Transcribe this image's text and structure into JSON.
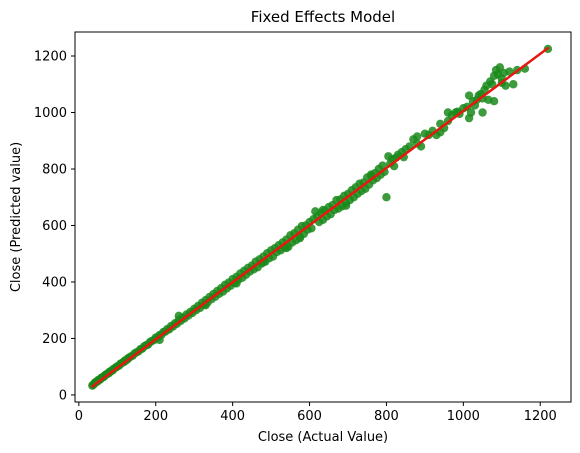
{
  "chart_data": {
    "type": "scatter",
    "title": "Fixed Effects Model",
    "xlabel": "Close (Actual Value)",
    "ylabel": "Close (Predicted value)",
    "xlim": [
      -10,
      1280
    ],
    "ylim": [
      -25,
      1285
    ],
    "xticks": [
      0,
      200,
      400,
      600,
      800,
      1000,
      1200
    ],
    "yticks": [
      0,
      200,
      400,
      600,
      800,
      1000,
      1200
    ],
    "grid": false,
    "legend": "none",
    "colors": {
      "points": "#1a8a1a",
      "fit_line": "#e8170f",
      "axes": "#000000",
      "background": "#ffffff"
    },
    "series": [
      {
        "kind": "scatter",
        "points": [
          [
            35,
            33
          ],
          [
            38,
            37
          ],
          [
            40,
            39
          ],
          [
            42,
            44
          ],
          [
            45,
            46
          ],
          [
            48,
            47
          ],
          [
            50,
            52
          ],
          [
            52,
            53
          ],
          [
            55,
            54
          ],
          [
            58,
            60
          ],
          [
            60,
            61
          ],
          [
            62,
            63
          ],
          [
            65,
            64
          ],
          [
            68,
            70
          ],
          [
            70,
            71
          ],
          [
            72,
            73
          ],
          [
            75,
            76
          ],
          [
            78,
            77
          ],
          [
            80,
            82
          ],
          [
            82,
            83
          ],
          [
            85,
            86
          ],
          [
            88,
            87
          ],
          [
            90,
            92
          ],
          [
            95,
            96
          ],
          [
            98,
            99
          ],
          [
            100,
            101
          ],
          [
            105,
            104
          ],
          [
            108,
            110
          ],
          [
            110,
            111
          ],
          [
            115,
            116
          ],
          [
            118,
            117
          ],
          [
            120,
            122
          ],
          [
            125,
            124
          ],
          [
            128,
            130
          ],
          [
            130,
            131
          ],
          [
            135,
            136
          ],
          [
            140,
            139
          ],
          [
            145,
            147
          ],
          [
            150,
            151
          ],
          [
            155,
            154
          ],
          [
            160,
            162
          ],
          [
            165,
            164
          ],
          [
            170,
            172
          ],
          [
            175,
            176
          ],
          [
            180,
            178
          ],
          [
            185,
            187
          ],
          [
            190,
            191
          ],
          [
            195,
            194
          ],
          [
            200,
            203
          ],
          [
            205,
            204
          ],
          [
            210,
            212
          ],
          [
            215,
            213
          ],
          [
            220,
            223
          ],
          [
            225,
            224
          ],
          [
            230,
            233
          ],
          [
            235,
            232
          ],
          [
            240,
            244
          ],
          [
            245,
            242
          ],
          [
            250,
            254
          ],
          [
            255,
            252
          ],
          [
            260,
            265
          ],
          [
            265,
            262
          ],
          [
            270,
            274
          ],
          [
            275,
            271
          ],
          [
            280,
            285
          ],
          [
            285,
            281
          ],
          [
            290,
            294
          ],
          [
            295,
            290
          ],
          [
            300,
            305
          ],
          [
            305,
            300
          ],
          [
            310,
            315
          ],
          [
            315,
            308
          ],
          [
            320,
            326
          ],
          [
            325,
            319
          ],
          [
            330,
            336
          ],
          [
            335,
            328
          ],
          [
            340,
            347
          ],
          [
            345,
            339
          ],
          [
            350,
            357
          ],
          [
            355,
            348
          ],
          [
            360,
            368
          ],
          [
            365,
            358
          ],
          [
            370,
            378
          ],
          [
            375,
            366
          ],
          [
            380,
            390
          ],
          [
            385,
            377
          ],
          [
            390,
            398
          ],
          [
            395,
            387
          ],
          [
            400,
            410
          ],
          [
            405,
            396
          ],
          [
            410,
            418
          ],
          [
            415,
            408
          ],
          [
            420,
            430
          ],
          [
            425,
            415
          ],
          [
            430,
            440
          ],
          [
            435,
            426
          ],
          [
            440,
            450
          ],
          [
            445,
            437
          ],
          [
            450,
            458
          ],
          [
            455,
            445
          ],
          [
            460,
            472
          ],
          [
            465,
            452
          ],
          [
            470,
            480
          ],
          [
            475,
            465
          ],
          [
            480,
            490
          ],
          [
            485,
            472
          ],
          [
            490,
            502
          ],
          [
            495,
            484
          ],
          [
            500,
            512
          ],
          [
            505,
            490
          ],
          [
            510,
            520
          ],
          [
            515,
            506
          ],
          [
            520,
            530
          ],
          [
            525,
            512
          ],
          [
            530,
            540
          ],
          [
            535,
            522
          ],
          [
            540,
            550
          ],
          [
            545,
            525
          ],
          [
            550,
            565
          ],
          [
            555,
            540
          ],
          [
            560,
            572
          ],
          [
            565,
            548
          ],
          [
            570,
            585
          ],
          [
            575,
            560
          ],
          [
            580,
            598
          ],
          [
            585,
            570
          ],
          [
            590,
            600
          ],
          [
            595,
            585
          ],
          [
            600,
            612
          ],
          [
            605,
            590
          ],
          [
            610,
            622
          ],
          [
            615,
            650
          ],
          [
            620,
            632
          ],
          [
            625,
            612
          ],
          [
            630,
            645
          ],
          [
            635,
            620
          ],
          [
            640,
            652
          ],
          [
            645,
            632
          ],
          [
            650,
            665
          ],
          [
            655,
            640
          ],
          [
            660,
            672
          ],
          [
            665,
            655
          ],
          [
            670,
            690
          ],
          [
            675,
            660
          ],
          [
            680,
            692
          ],
          [
            685,
            668
          ],
          [
            690,
            705
          ],
          [
            695,
            680
          ],
          [
            700,
            712
          ],
          [
            705,
            690
          ],
          [
            710,
            725
          ],
          [
            715,
            700
          ],
          [
            720,
            735
          ],
          [
            725,
            712
          ],
          [
            730,
            748
          ],
          [
            735,
            722
          ],
          [
            740,
            752
          ],
          [
            745,
            730
          ],
          [
            750,
            770
          ],
          [
            755,
            745
          ],
          [
            760,
            775
          ],
          [
            765,
            760
          ],
          [
            770,
            785
          ],
          [
            775,
            768
          ],
          [
            780,
            800
          ],
          [
            785,
            780
          ],
          [
            790,
            812
          ],
          [
            795,
            790
          ],
          [
            800,
            700
          ],
          [
            805,
            845
          ],
          [
            810,
            820
          ],
          [
            815,
            835
          ],
          [
            820,
            810
          ],
          [
            825,
            840
          ],
          [
            830,
            850
          ],
          [
            840,
            860
          ],
          [
            845,
            842
          ],
          [
            850,
            870
          ],
          [
            860,
            880
          ],
          [
            870,
            905
          ],
          [
            880,
            890
          ],
          [
            890,
            880
          ],
          [
            900,
            925
          ],
          [
            910,
            920
          ],
          [
            920,
            935
          ],
          [
            930,
            920
          ],
          [
            940,
            960
          ],
          [
            950,
            945
          ],
          [
            960,
            970
          ],
          [
            970,
            990
          ],
          [
            980,
            1000
          ],
          [
            985,
            1003
          ],
          [
            990,
            995
          ],
          [
            1000,
            1015
          ],
          [
            1010,
            1020
          ],
          [
            1020,
            1000
          ],
          [
            1025,
            1040
          ],
          [
            1030,
            1025
          ],
          [
            1035,
            1045
          ],
          [
            1040,
            1060
          ],
          [
            1045,
            1065
          ],
          [
            1050,
            1050
          ],
          [
            1055,
            1080
          ],
          [
            1060,
            1095
          ],
          [
            1065,
            1045
          ],
          [
            1070,
            1110
          ],
          [
            1075,
            1100
          ],
          [
            1080,
            1130
          ],
          [
            1085,
            1150
          ],
          [
            1090,
            1135
          ],
          [
            1095,
            1160
          ],
          [
            1100,
            1120
          ],
          [
            1105,
            1140
          ],
          [
            1110,
            1095
          ],
          [
            1120,
            1145
          ],
          [
            1130,
            1100
          ],
          [
            1140,
            1150
          ],
          [
            1160,
            1155
          ],
          [
            1220,
            1225
          ],
          [
            210,
            195
          ],
          [
            260,
            280
          ],
          [
            330,
            318
          ],
          [
            410,
            395
          ],
          [
            480,
            470
          ],
          [
            540,
            520
          ],
          [
            575,
            555
          ],
          [
            635,
            655
          ],
          [
            695,
            670
          ],
          [
            760,
            780
          ],
          [
            880,
            915
          ],
          [
            940,
            930
          ],
          [
            1015,
            1060
          ],
          [
            1050,
            1000
          ],
          [
            1080,
            1040
          ],
          [
            1100,
            1105
          ],
          [
            1015,
            980
          ],
          [
            960,
            1000
          ]
        ]
      },
      {
        "kind": "fit_line",
        "points": [
          [
            35,
            30
          ],
          [
            1220,
            1228
          ]
        ]
      }
    ]
  }
}
